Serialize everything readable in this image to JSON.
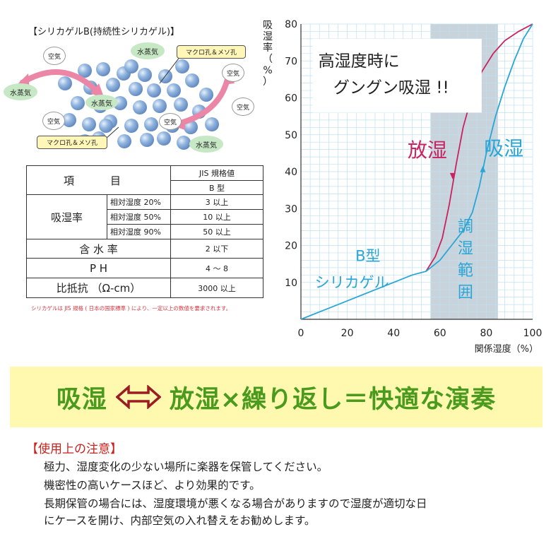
{
  "diagram": {
    "title": "【シリカゲルB(持続性シリカゲル)】",
    "labels": {
      "water_vapor_1": "水蒸気",
      "water_vapor_2": "水蒸気",
      "water_vapor_3": "水蒸気",
      "water_vapor_4": "水蒸気",
      "air_1": "空気",
      "air_2": "空気",
      "air_3": "空気",
      "air_4": "空気",
      "air_5": "空気",
      "macro_pore_top": "マクロ孔＆メソ孔",
      "macro_pore_bottom": "マクロ孔＆メソ孔"
    }
  },
  "spec_table": {
    "header_item": "項　目",
    "header_jis": "JIS 規格値",
    "header_type": "B 型",
    "absorption_label": "吸湿率",
    "rows_absorption": [
      {
        "condition": "相対湿度 20%",
        "value": "3 以上"
      },
      {
        "condition": "相対湿度 50%",
        "value": "10 以上"
      },
      {
        "condition": "相対湿度 90%",
        "value": "50 以上"
      }
    ],
    "rows_other": [
      {
        "item": "含 水 率",
        "value": "2 以下"
      },
      {
        "item": "P H",
        "value": "4 ～ 8"
      },
      {
        "item": "比抵抗 （Ω-cm）",
        "value": "3000 以上"
      }
    ],
    "note": "シリカゲルは JIS 規格 ( 日本の国家標準 ) により、一定以上の数値を要求されます。"
  },
  "chart_data": {
    "type": "line",
    "ylabel": "吸湿率（%）",
    "xlabel": "関係湿度（%）",
    "xlim": [
      0,
      100
    ],
    "ylim": [
      0,
      80
    ],
    "xticks": [
      "0",
      "20",
      "40",
      "60",
      "80",
      "100"
    ],
    "yticks": [
      "10",
      "20",
      "30",
      "40",
      "50",
      "60",
      "70",
      "80"
    ],
    "grid": true,
    "band": {
      "x_range": [
        56,
        85
      ],
      "label": [
        "調",
        "湿",
        "範",
        "囲"
      ]
    },
    "series": [
      {
        "name": "放湿",
        "color": "#c8225f",
        "points": [
          [
            54,
            13
          ],
          [
            58,
            17
          ],
          [
            61,
            22
          ],
          [
            64,
            31
          ],
          [
            67,
            42
          ],
          [
            70,
            52
          ],
          [
            74,
            61
          ],
          [
            78,
            67
          ],
          [
            83,
            72
          ],
          [
            88,
            75.5
          ],
          [
            94,
            78
          ],
          [
            100,
            80
          ]
        ]
      },
      {
        "name": "吸湿",
        "color": "#2aa6d6",
        "points": [
          [
            0,
            0
          ],
          [
            10,
            2.5
          ],
          [
            20,
            5
          ],
          [
            30,
            7.5
          ],
          [
            40,
            10
          ],
          [
            48,
            12
          ],
          [
            54,
            13
          ],
          [
            60,
            16
          ],
          [
            65,
            20
          ],
          [
            70,
            24
          ],
          [
            74,
            29
          ],
          [
            77,
            36
          ],
          [
            80,
            45
          ],
          [
            84,
            55
          ],
          [
            88,
            63
          ],
          [
            92,
            70
          ],
          [
            96,
            76
          ],
          [
            100,
            80
          ]
        ]
      }
    ],
    "annotations": {
      "headline_line1": "高湿度時に",
      "headline_line2": "グングン吸湿 !!",
      "release_label": "放湿",
      "absorb_label": "吸湿",
      "btype_line1": "B型",
      "btype_line2": "シリカゲル"
    }
  },
  "banner": {
    "left": "吸湿",
    "right": "放湿×繰り返し＝快適な演奏"
  },
  "notes": {
    "title": "【使用上の注意】",
    "lines": [
      "極力、湿度変化の少ない場所に楽器を保管してください。",
      "機密性の高いケースほど、より効果的です。",
      "長期保管の場合には、湿度環境が悪くなる場合がありますので湿度が適切な日",
      "にケースを開け、内部空気の入れ替えをお勧めします。"
    ]
  },
  "colors": {
    "accent_green": "#4a9a1e",
    "banner_bg": "#fff9b0",
    "notes_title": "#c8221d",
    "band": "#c9d3dc",
    "grid": "#bfe0f0"
  }
}
